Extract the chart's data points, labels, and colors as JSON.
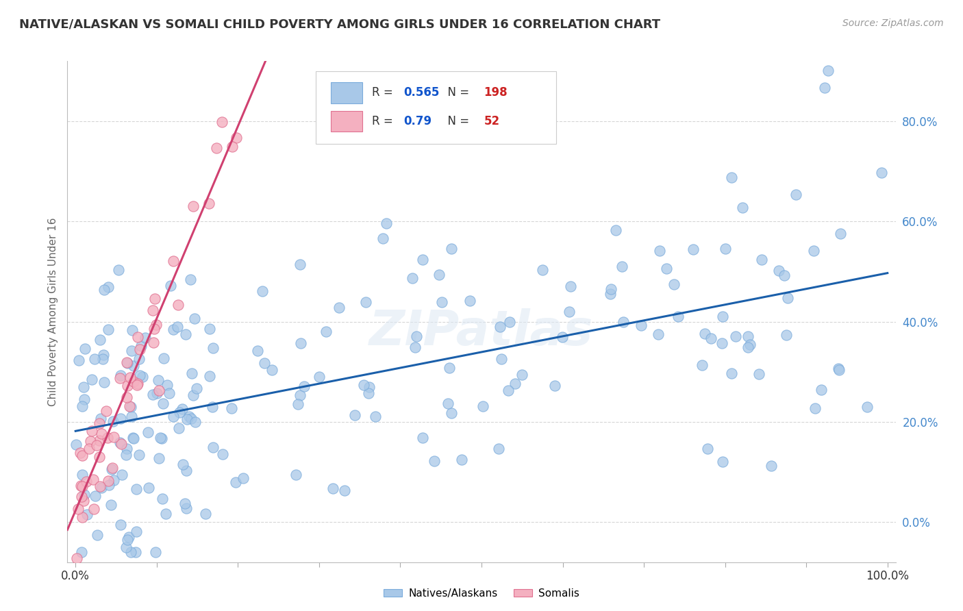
{
  "title": "NATIVE/ALASKAN VS SOMALI CHILD POVERTY AMONG GIRLS UNDER 16 CORRELATION CHART",
  "source": "Source: ZipAtlas.com",
  "ylabel": "Child Poverty Among Girls Under 16",
  "xlim": [
    -0.01,
    1.01
  ],
  "ylim": [
    -0.08,
    0.92
  ],
  "xticks": [
    0.0,
    0.1,
    0.2,
    0.3,
    0.4,
    0.5,
    0.6,
    0.7,
    0.8,
    0.9,
    1.0
  ],
  "yticks": [
    0.0,
    0.2,
    0.4,
    0.6,
    0.8
  ],
  "native_color": "#a8c8e8",
  "native_edge_color": "#7aabdb",
  "somali_color": "#f4b0c0",
  "somali_edge_color": "#e07090",
  "native_line_color": "#1a5faa",
  "somali_line_color": "#d04070",
  "R_native": 0.565,
  "N_native": 198,
  "R_somali": 0.79,
  "N_somali": 52,
  "watermark": "ZIPatlas",
  "background_color": "#ffffff",
  "grid_color": "#cccccc",
  "legend_label_native": "Natives/Alaskans",
  "legend_label_somali": "Somalis",
  "title_color": "#333333",
  "axis_label_color": "#666666",
  "ytick_label_color": "#4488cc",
  "legend_r_color": "#1155cc",
  "legend_n_color": "#cc2222",
  "native_line_x_end": 1.0,
  "somali_line_x_start": -0.01,
  "somali_line_x_end": 0.45
}
